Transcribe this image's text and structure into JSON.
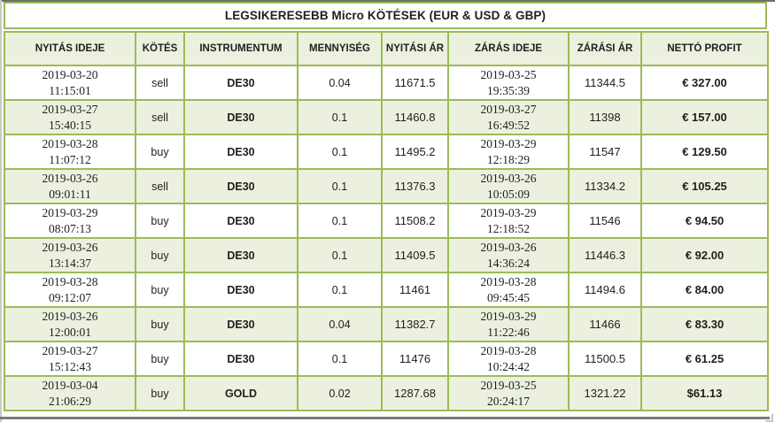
{
  "title": "LEGSIKERESEBB Micro KÖTÉSEK (EUR & USD & GBP)",
  "columns": [
    "NYITÁS IDEJE",
    "KÖTÉS",
    "INSTRUMENTUM",
    "MENNYISÉG",
    "NYITÁSI ÁR",
    "ZÁRÁS IDEJE",
    "ZÁRÁSI ÁR",
    "NETTÓ PROFIT"
  ],
  "rows": [
    {
      "open_date": "2019-03-20",
      "open_clock": "11:15:01",
      "side": "sell",
      "instrument": "DE30",
      "quantity": "0.04",
      "open_price": "11671.5",
      "close_date": "2019-03-25",
      "close_clock": "19:35:39",
      "close_price": "11344.5",
      "net_profit": "€ 327.00"
    },
    {
      "open_date": "2019-03-27",
      "open_clock": "15:40:15",
      "side": "sell",
      "instrument": "DE30",
      "quantity": "0.1",
      "open_price": "11460.8",
      "close_date": "2019-03-27",
      "close_clock": "16:49:52",
      "close_price": "11398",
      "net_profit": "€ 157.00"
    },
    {
      "open_date": "2019-03-28",
      "open_clock": "11:07:12",
      "side": "buy",
      "instrument": "DE30",
      "quantity": "0.1",
      "open_price": "11495.2",
      "close_date": "2019-03-29",
      "close_clock": "12:18:29",
      "close_price": "11547",
      "net_profit": "€ 129.50"
    },
    {
      "open_date": "2019-03-26",
      "open_clock": "09:01:11",
      "side": "sell",
      "instrument": "DE30",
      "quantity": "0.1",
      "open_price": "11376.3",
      "close_date": "2019-03-26",
      "close_clock": "10:05:09",
      "close_price": "11334.2",
      "net_profit": "€ 105.25"
    },
    {
      "open_date": "2019-03-29",
      "open_clock": "08:07:13",
      "side": "buy",
      "instrument": "DE30",
      "quantity": "0.1",
      "open_price": "11508.2",
      "close_date": "2019-03-29",
      "close_clock": "12:18:52",
      "close_price": "11546",
      "net_profit": "€ 94.50"
    },
    {
      "open_date": "2019-03-26",
      "open_clock": "13:14:37",
      "side": "buy",
      "instrument": "DE30",
      "quantity": "0.1",
      "open_price": "11409.5",
      "close_date": "2019-03-26",
      "close_clock": "14:36:24",
      "close_price": "11446.3",
      "net_profit": "€ 92.00"
    },
    {
      "open_date": "2019-03-28",
      "open_clock": "09:12:07",
      "side": "buy",
      "instrument": "DE30",
      "quantity": "0.1",
      "open_price": "11461",
      "close_date": "2019-03-28",
      "close_clock": "09:45:45",
      "close_price": "11494.6",
      "net_profit": "€ 84.00"
    },
    {
      "open_date": "2019-03-26",
      "open_clock": "12:00:01",
      "side": "buy",
      "instrument": "DE30",
      "quantity": "0.04",
      "open_price": "11382.7",
      "close_date": "2019-03-29",
      "close_clock": "11:22:46",
      "close_price": "11466",
      "net_profit": "€ 83.30"
    },
    {
      "open_date": "2019-03-27",
      "open_clock": "15:12:43",
      "side": "buy",
      "instrument": "DE30",
      "quantity": "0.1",
      "open_price": "11476",
      "close_date": "2019-03-28",
      "close_clock": "10:24:42",
      "close_price": "11500.5",
      "net_profit": "€ 61.25"
    },
    {
      "open_date": "2019-03-04",
      "open_clock": "21:06:29",
      "side": "buy",
      "instrument": "GOLD",
      "quantity": "0.02",
      "open_price": "1287.68",
      "close_date": "2019-03-25",
      "close_clock": "20:24:17",
      "close_price": "1321.22",
      "net_profit": "$61.13"
    }
  ],
  "colors": {
    "table_border": "#9bbb59",
    "shaded_row_bg": "#ebf1de",
    "header_bg": "#ebf1de",
    "title_bg": "#ffffff",
    "text": "#1f1f1f"
  }
}
